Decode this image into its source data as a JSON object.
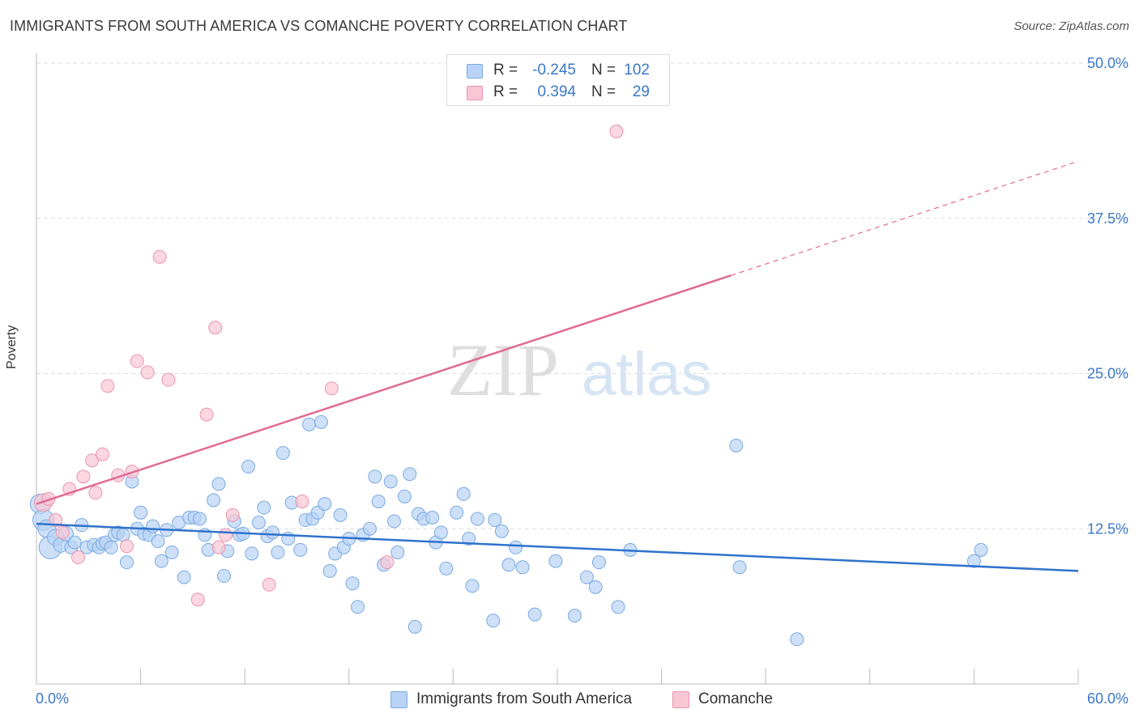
{
  "header": {
    "title": "IMMIGRANTS FROM SOUTH AMERICA VS COMANCHE POVERTY CORRELATION CHART",
    "source": "Source: ZipAtlas.com"
  },
  "watermark": {
    "part1": "ZIP",
    "part2": "atlas"
  },
  "legend_top": {
    "rows": [
      {
        "r_label": "R =",
        "r_value": "-0.245",
        "n_label": "N =",
        "n_value": "102"
      },
      {
        "r_label": "R =",
        "r_value": "0.394",
        "n_label": "N =",
        "n_value": "29"
      }
    ]
  },
  "legend_bottom": {
    "items": [
      {
        "label": "Immigrants from South America"
      },
      {
        "label": "Comanche"
      }
    ]
  },
  "colors": {
    "blue_fill": "#b8d3f5",
    "blue_stroke": "#7aaae0",
    "blue_line": "#2f72cc",
    "pink_fill": "#f8c6d4",
    "pink_stroke": "#eb95ad",
    "pink_line": "#e06b94",
    "tick_text": "#3a78c9",
    "grid": "#dddddd"
  },
  "chart_data": {
    "type": "scatter",
    "title": "IMMIGRANTS FROM SOUTH AMERICA VS COMANCHE POVERTY CORRELATION CHART",
    "xlabel": "",
    "ylabel": "Poverty",
    "xlim": [
      0,
      60
    ],
    "ylim": [
      0,
      50
    ],
    "x_tick_labels": [
      "0.0%",
      "60.0%"
    ],
    "y_ticks": [
      12.5,
      25.0,
      37.5,
      50.0
    ],
    "y_tick_labels": [
      "12.5%",
      "25.0%",
      "37.5%",
      "50.0%"
    ],
    "series": [
      {
        "name": "Immigrants from South America",
        "r": -0.245,
        "n": 102,
        "trend": {
          "x": [
            0,
            60
          ],
          "y": [
            12.9,
            9.1
          ],
          "dashed_from": null
        },
        "points": [
          {
            "x": 0.2,
            "y": 14.5,
            "s": 12
          },
          {
            "x": 0.4,
            "y": 13.2,
            "s": 13
          },
          {
            "x": 0.6,
            "y": 12.5,
            "s": 11
          },
          {
            "x": 0.8,
            "y": 11.0,
            "s": 14
          },
          {
            "x": 1.1,
            "y": 11.8,
            "s": 10
          },
          {
            "x": 1.4,
            "y": 11.2,
            "s": 9
          },
          {
            "x": 1.7,
            "y": 12.1,
            "s": 9
          },
          {
            "x": 2.0,
            "y": 11.0,
            "s": 8
          },
          {
            "x": 2.2,
            "y": 11.4,
            "s": 8
          },
          {
            "x": 2.6,
            "y": 12.8,
            "s": 8
          },
          {
            "x": 2.9,
            "y": 11.0,
            "s": 8
          },
          {
            "x": 3.3,
            "y": 11.2,
            "s": 8
          },
          {
            "x": 3.6,
            "y": 11.0,
            "s": 8
          },
          {
            "x": 3.8,
            "y": 11.3,
            "s": 8
          },
          {
            "x": 4.0,
            "y": 11.4,
            "s": 8
          },
          {
            "x": 4.3,
            "y": 11.0,
            "s": 8
          },
          {
            "x": 4.5,
            "y": 12.0,
            "s": 8
          },
          {
            "x": 4.7,
            "y": 12.2,
            "s": 8
          },
          {
            "x": 5.0,
            "y": 12.0,
            "s": 8
          },
          {
            "x": 5.2,
            "y": 9.8,
            "s": 8
          },
          {
            "x": 5.5,
            "y": 16.3,
            "s": 8
          },
          {
            "x": 5.8,
            "y": 12.5,
            "s": 8
          },
          {
            "x": 6.0,
            "y": 13.8,
            "s": 8
          },
          {
            "x": 6.2,
            "y": 12.1,
            "s": 8
          },
          {
            "x": 6.5,
            "y": 12.0,
            "s": 8
          },
          {
            "x": 6.7,
            "y": 12.7,
            "s": 8
          },
          {
            "x": 7.0,
            "y": 11.5,
            "s": 8
          },
          {
            "x": 7.2,
            "y": 9.9,
            "s": 8
          },
          {
            "x": 7.5,
            "y": 12.4,
            "s": 8
          },
          {
            "x": 7.8,
            "y": 10.6,
            "s": 8
          },
          {
            "x": 8.2,
            "y": 13.0,
            "s": 8
          },
          {
            "x": 8.5,
            "y": 8.6,
            "s": 8
          },
          {
            "x": 8.8,
            "y": 13.4,
            "s": 8
          },
          {
            "x": 9.1,
            "y": 13.4,
            "s": 8
          },
          {
            "x": 9.4,
            "y": 13.3,
            "s": 8
          },
          {
            "x": 9.7,
            "y": 12.0,
            "s": 8
          },
          {
            "x": 9.9,
            "y": 10.8,
            "s": 8
          },
          {
            "x": 10.2,
            "y": 14.8,
            "s": 8
          },
          {
            "x": 10.5,
            "y": 16.1,
            "s": 8
          },
          {
            "x": 10.8,
            "y": 8.7,
            "s": 8
          },
          {
            "x": 11.0,
            "y": 10.7,
            "s": 8
          },
          {
            "x": 11.4,
            "y": 13.1,
            "s": 8
          },
          {
            "x": 11.7,
            "y": 12.0,
            "s": 8
          },
          {
            "x": 11.9,
            "y": 12.1,
            "s": 8
          },
          {
            "x": 12.2,
            "y": 17.5,
            "s": 8
          },
          {
            "x": 12.4,
            "y": 10.5,
            "s": 8
          },
          {
            "x": 12.8,
            "y": 13.0,
            "s": 8
          },
          {
            "x": 13.1,
            "y": 14.2,
            "s": 8
          },
          {
            "x": 13.3,
            "y": 11.9,
            "s": 8
          },
          {
            "x": 13.6,
            "y": 12.2,
            "s": 8
          },
          {
            "x": 13.9,
            "y": 10.6,
            "s": 8
          },
          {
            "x": 14.2,
            "y": 18.6,
            "s": 8
          },
          {
            "x": 14.5,
            "y": 11.7,
            "s": 8
          },
          {
            "x": 14.7,
            "y": 14.6,
            "s": 8
          },
          {
            "x": 15.2,
            "y": 10.8,
            "s": 8
          },
          {
            "x": 15.5,
            "y": 13.2,
            "s": 8
          },
          {
            "x": 15.7,
            "y": 20.9,
            "s": 8
          },
          {
            "x": 15.9,
            "y": 13.3,
            "s": 8
          },
          {
            "x": 16.2,
            "y": 13.8,
            "s": 8
          },
          {
            "x": 16.4,
            "y": 21.1,
            "s": 8
          },
          {
            "x": 16.6,
            "y": 14.5,
            "s": 8
          },
          {
            "x": 16.9,
            "y": 9.1,
            "s": 8
          },
          {
            "x": 17.2,
            "y": 10.5,
            "s": 8
          },
          {
            "x": 17.5,
            "y": 13.6,
            "s": 8
          },
          {
            "x": 17.7,
            "y": 11.0,
            "s": 8
          },
          {
            "x": 18.0,
            "y": 11.7,
            "s": 8
          },
          {
            "x": 18.2,
            "y": 8.1,
            "s": 8
          },
          {
            "x": 18.5,
            "y": 6.2,
            "s": 8
          },
          {
            "x": 18.8,
            "y": 12.0,
            "s": 8
          },
          {
            "x": 19.2,
            "y": 12.5,
            "s": 8
          },
          {
            "x": 19.5,
            "y": 16.7,
            "s": 8
          },
          {
            "x": 19.7,
            "y": 14.7,
            "s": 8
          },
          {
            "x": 20.0,
            "y": 9.6,
            "s": 8
          },
          {
            "x": 20.4,
            "y": 16.3,
            "s": 8
          },
          {
            "x": 20.6,
            "y": 13.1,
            "s": 8
          },
          {
            "x": 20.8,
            "y": 10.6,
            "s": 8
          },
          {
            "x": 21.2,
            "y": 15.1,
            "s": 8
          },
          {
            "x": 21.5,
            "y": 16.9,
            "s": 8
          },
          {
            "x": 21.8,
            "y": 4.6,
            "s": 8
          },
          {
            "x": 22.0,
            "y": 13.7,
            "s": 8
          },
          {
            "x": 22.3,
            "y": 13.3,
            "s": 8
          },
          {
            "x": 22.8,
            "y": 13.4,
            "s": 8
          },
          {
            "x": 23.0,
            "y": 11.4,
            "s": 8
          },
          {
            "x": 23.3,
            "y": 12.2,
            "s": 8
          },
          {
            "x": 23.6,
            "y": 9.3,
            "s": 8
          },
          {
            "x": 24.2,
            "y": 13.8,
            "s": 8
          },
          {
            "x": 24.6,
            "y": 15.3,
            "s": 8
          },
          {
            "x": 24.9,
            "y": 11.7,
            "s": 8
          },
          {
            "x": 25.1,
            "y": 7.9,
            "s": 8
          },
          {
            "x": 25.4,
            "y": 13.3,
            "s": 8
          },
          {
            "x": 26.3,
            "y": 5.1,
            "s": 8
          },
          {
            "x": 26.4,
            "y": 13.2,
            "s": 8
          },
          {
            "x": 26.8,
            "y": 12.3,
            "s": 8
          },
          {
            "x": 27.2,
            "y": 9.6,
            "s": 8
          },
          {
            "x": 27.6,
            "y": 11.0,
            "s": 8
          },
          {
            "x": 28.0,
            "y": 9.4,
            "s": 8
          },
          {
            "x": 28.7,
            "y": 5.6,
            "s": 8
          },
          {
            "x": 29.9,
            "y": 9.9,
            "s": 8
          },
          {
            "x": 31.0,
            "y": 5.5,
            "s": 8
          },
          {
            "x": 31.7,
            "y": 8.6,
            "s": 8
          },
          {
            "x": 32.2,
            "y": 7.8,
            "s": 8
          },
          {
            "x": 32.4,
            "y": 9.8,
            "s": 8
          },
          {
            "x": 33.5,
            "y": 6.2,
            "s": 8
          },
          {
            "x": 34.2,
            "y": 10.8,
            "s": 8
          },
          {
            "x": 40.3,
            "y": 19.2,
            "s": 8
          },
          {
            "x": 40.5,
            "y": 9.4,
            "s": 8
          },
          {
            "x": 43.8,
            "y": 3.6,
            "s": 8
          },
          {
            "x": 54.0,
            "y": 9.9,
            "s": 8
          },
          {
            "x": 54.4,
            "y": 10.8,
            "s": 8
          }
        ]
      },
      {
        "name": "Comanche",
        "r": 0.394,
        "n": 29,
        "trend": {
          "x": [
            0,
            40.0,
            60
          ],
          "y": [
            14.5,
            32.9,
            42.1
          ],
          "dashed_from": 40.0
        },
        "points": [
          {
            "x": 0.4,
            "y": 14.6,
            "s": 11
          },
          {
            "x": 0.7,
            "y": 14.9,
            "s": 8
          },
          {
            "x": 1.1,
            "y": 13.2,
            "s": 8
          },
          {
            "x": 1.5,
            "y": 12.2,
            "s": 8
          },
          {
            "x": 1.9,
            "y": 15.7,
            "s": 8
          },
          {
            "x": 2.4,
            "y": 10.2,
            "s": 8
          },
          {
            "x": 2.7,
            "y": 16.7,
            "s": 8
          },
          {
            "x": 3.2,
            "y": 18.0,
            "s": 8
          },
          {
            "x": 3.4,
            "y": 15.4,
            "s": 8
          },
          {
            "x": 3.8,
            "y": 18.5,
            "s": 8
          },
          {
            "x": 4.1,
            "y": 24.0,
            "s": 8
          },
          {
            "x": 4.7,
            "y": 16.8,
            "s": 8
          },
          {
            "x": 5.2,
            "y": 11.1,
            "s": 8
          },
          {
            "x": 5.5,
            "y": 17.1,
            "s": 8
          },
          {
            "x": 5.8,
            "y": 26.0,
            "s": 8
          },
          {
            "x": 6.4,
            "y": 25.1,
            "s": 8
          },
          {
            "x": 7.1,
            "y": 34.4,
            "s": 8
          },
          {
            "x": 7.6,
            "y": 24.5,
            "s": 8
          },
          {
            "x": 9.3,
            "y": 6.8,
            "s": 8
          },
          {
            "x": 9.8,
            "y": 21.7,
            "s": 8
          },
          {
            "x": 10.3,
            "y": 28.7,
            "s": 8
          },
          {
            "x": 10.5,
            "y": 11.0,
            "s": 8
          },
          {
            "x": 10.9,
            "y": 12.0,
            "s": 8
          },
          {
            "x": 11.3,
            "y": 13.6,
            "s": 8
          },
          {
            "x": 13.4,
            "y": 8.0,
            "s": 8
          },
          {
            "x": 15.3,
            "y": 14.7,
            "s": 8
          },
          {
            "x": 17.0,
            "y": 23.8,
            "s": 8
          },
          {
            "x": 20.2,
            "y": 9.8,
            "s": 8
          },
          {
            "x": 33.4,
            "y": 44.5,
            "s": 8
          }
        ]
      }
    ]
  }
}
